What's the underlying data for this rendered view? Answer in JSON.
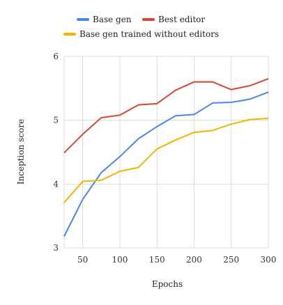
{
  "chart_data": {
    "type": "line",
    "xlabel": "Epochs",
    "ylabel": "Inception score",
    "xlim": [
      25,
      300
    ],
    "ylim": [
      3,
      6
    ],
    "xticks": [
      50,
      100,
      150,
      200,
      250,
      300
    ],
    "yticks": [
      3,
      4,
      5,
      6
    ],
    "grid": true,
    "legend_position": "top",
    "x": [
      25,
      50,
      75,
      100,
      125,
      150,
      175,
      200,
      225,
      250,
      275,
      300
    ],
    "series": [
      {
        "name": "Base gen",
        "color": "#4a86e8",
        "values": [
          3.18,
          3.76,
          4.18,
          4.43,
          4.71,
          4.9,
          5.07,
          5.09,
          5.27,
          5.28,
          5.33,
          5.44
        ]
      },
      {
        "name": "Best editor",
        "color": "#db4437",
        "values": [
          4.49,
          4.78,
          5.04,
          5.08,
          5.24,
          5.26,
          5.47,
          5.6,
          5.6,
          5.48,
          5.54,
          5.65
        ]
      },
      {
        "name": "Base gen trained without editors",
        "color": "#f4b400",
        "values": [
          3.71,
          4.04,
          4.06,
          4.2,
          4.26,
          4.55,
          4.69,
          4.81,
          4.84,
          4.94,
          5.01,
          5.03
        ]
      }
    ]
  }
}
